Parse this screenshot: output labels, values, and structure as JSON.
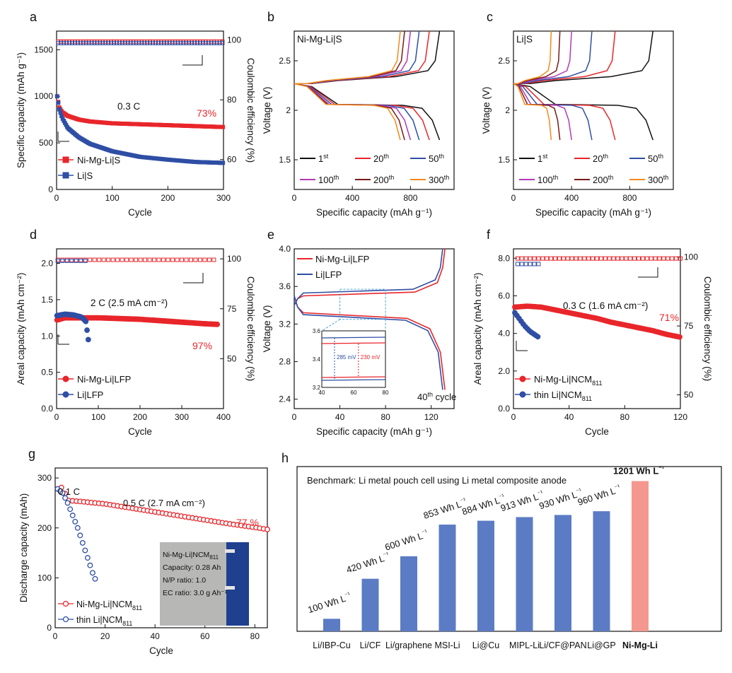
{
  "chart_data": [
    {
      "panel": "a",
      "type": "scatter",
      "xlabel": "Cycle",
      "ylabel": "Specific capacity (mAh g⁻¹)",
      "y2label": "Coulombic efficiency (%)",
      "xlim": [
        0,
        300
      ],
      "ylim": [
        0,
        1700
      ],
      "y2lim": [
        50,
        103
      ],
      "xticks": [
        0,
        100,
        200,
        300
      ],
      "yticks": [
        0,
        500,
        1000,
        1500
      ],
      "y2ticks": [
        60,
        80,
        100
      ],
      "series": [
        {
          "name": "Ni-Mg-Li|S",
          "color": "#e8262b",
          "marker": "square",
          "x": [
            1,
            5,
            10,
            20,
            40,
            60,
            100,
            150,
            200,
            250,
            300
          ],
          "y": [
            1000,
            880,
            830,
            790,
            750,
            730,
            710,
            700,
            690,
            680,
            670
          ],
          "ce": 99.5
        },
        {
          "name": "Li|S",
          "color": "#2f4ea5",
          "marker": "square",
          "x": [
            1,
            5,
            10,
            20,
            40,
            60,
            100,
            150,
            200,
            250,
            300
          ],
          "y": [
            1000,
            860,
            770,
            660,
            560,
            490,
            410,
            350,
            320,
            295,
            285
          ],
          "ce": 99.0
        }
      ],
      "annotations": [
        "0.3 C",
        "73%"
      ]
    },
    {
      "panel": "b",
      "type": "line",
      "xlabel": "Specific capacity (mAh g⁻¹)",
      "ylabel": "Voltage (V)",
      "title": "Ni-Mg-Li|S",
      "xlim": [
        0,
        1100
      ],
      "ylim": [
        1.2,
        2.8
      ],
      "xticks": [
        0,
        400,
        800
      ],
      "yticks": [
        1.5,
        2.0,
        2.5
      ],
      "curves": [
        {
          "label": "1st",
          "color": "#111111",
          "cap": 1000
        },
        {
          "label": "20th",
          "color": "#e8262b",
          "cap": 930
        },
        {
          "label": "50th",
          "color": "#2f4ea5",
          "cap": 860
        },
        {
          "label": "100th",
          "color": "#b23ab5",
          "cap": 800
        },
        {
          "label": "200th",
          "color": "#7a1a1a",
          "cap": 760
        },
        {
          "label": "300th",
          "color": "#f28a1c",
          "cap": 730
        }
      ]
    },
    {
      "panel": "c",
      "type": "line",
      "xlabel": "Specific capacity (mAh g⁻¹)",
      "ylabel": "Voltage (V)",
      "title": "Li|S",
      "xlim": [
        0,
        1100
      ],
      "ylim": [
        1.2,
        2.8
      ],
      "xticks": [
        0,
        400,
        800
      ],
      "yticks": [
        1.5,
        2.0,
        2.5
      ],
      "curves": [
        {
          "label": "1st",
          "color": "#111111",
          "cap": 960
        },
        {
          "label": "20th",
          "color": "#e8262b",
          "cap": 700
        },
        {
          "label": "50th",
          "color": "#2f4ea5",
          "cap": 540
        },
        {
          "label": "100th",
          "color": "#b23ab5",
          "cap": 400
        },
        {
          "label": "200th",
          "color": "#7a1a1a",
          "cap": 320
        },
        {
          "label": "300th",
          "color": "#f28a1c",
          "cap": 260
        }
      ]
    },
    {
      "panel": "d",
      "type": "scatter",
      "xlabel": "Cycle",
      "ylabel": "Areal capacity (mAh cm⁻²)",
      "y2label": "Coulombic efficiency (%)",
      "xlim": [
        0,
        400
      ],
      "ylim": [
        0,
        2.2
      ],
      "y2lim": [
        25,
        105
      ],
      "xticks": [
        0,
        100,
        200,
        300,
        400
      ],
      "yticks": [
        0.0,
        0.5,
        1.0,
        1.5,
        2.0
      ],
      "y2ticks": [
        50,
        75,
        100
      ],
      "series": [
        {
          "name": "Ni-Mg-Li|LFP",
          "color": "#e8262b",
          "marker": "circle",
          "x": [
            1,
            20,
            50,
            100,
            150,
            200,
            250,
            300,
            350,
            385
          ],
          "y": [
            1.22,
            1.25,
            1.25,
            1.25,
            1.24,
            1.23,
            1.21,
            1.19,
            1.17,
            1.16
          ],
          "ce": 99.5
        },
        {
          "name": "Li|LFP",
          "color": "#2f4ea5",
          "marker": "circle",
          "x": [
            1,
            20,
            40,
            60,
            70,
            75,
            78
          ],
          "y": [
            1.28,
            1.3,
            1.29,
            1.26,
            1.2,
            1.0,
            0.85
          ],
          "ce": 99.0
        }
      ],
      "annotations": [
        "2 C (2.5 mA cm⁻²)",
        "97%"
      ]
    },
    {
      "panel": "e",
      "type": "line",
      "xlabel": "Specific capacity (mAh g⁻¹)",
      "ylabel": "Voltage (V)",
      "xlim": [
        0,
        140
      ],
      "ylim": [
        2.3,
        4.0
      ],
      "xticks": [
        0,
        40,
        80,
        120
      ],
      "yticks": [
        2.4,
        2.8,
        3.2,
        3.6,
        4.0
      ],
      "series": [
        {
          "name": "Ni-Mg-Li|LFP",
          "color": "#e8262b",
          "cap": 132,
          "charge_plateau": 3.52,
          "discharge_plateau": 3.3
        },
        {
          "name": "Li|LFP",
          "color": "#2f4ea5",
          "cap": 130,
          "charge_plateau": 3.55,
          "discharge_plateau": 3.28
        }
      ],
      "inset": {
        "xlim": [
          40,
          80
        ],
        "ylim": [
          3.2,
          3.6
        ],
        "xticks": [
          40,
          60,
          80
        ],
        "yticks": [
          3.2,
          3.4,
          3.6
        ],
        "labels": [
          "285 mV",
          "230 mV"
        ]
      },
      "annotations": [
        "40th cycle"
      ]
    },
    {
      "panel": "f",
      "type": "scatter",
      "xlabel": "Cycle",
      "ylabel": "Areal capacity (mAh cm⁻²)",
      "y2label": "Coulombic efficiency (%)",
      "xlim": [
        0,
        120
      ],
      "ylim": [
        0,
        8.5
      ],
      "y2lim": [
        45,
        103
      ],
      "xticks": [
        0,
        40,
        80,
        120
      ],
      "yticks": [
        0.0,
        2.0,
        4.0,
        6.0,
        8.0
      ],
      "y2ticks": [
        50,
        75,
        100
      ],
      "series": [
        {
          "name": "Ni-Mg-Li|NCM811",
          "color": "#e8262b",
          "marker": "circle",
          "x": [
            1,
            10,
            20,
            30,
            40,
            50,
            60,
            70,
            80,
            90,
            100,
            110,
            120
          ],
          "y": [
            5.4,
            5.45,
            5.4,
            5.25,
            5.1,
            4.95,
            4.8,
            4.6,
            4.45,
            4.3,
            4.15,
            3.95,
            3.8
          ],
          "ce": 99.5
        },
        {
          "name": "thin Li|NCM811",
          "color": "#2f4ea5",
          "marker": "circle",
          "x": [
            1,
            4,
            8,
            12,
            16,
            18
          ],
          "y": [
            5.1,
            4.8,
            4.4,
            4.1,
            3.9,
            3.8
          ],
          "ce": 97.5
        }
      ],
      "annotations": [
        "0.3 C (1.6 mA cm⁻²)",
        "71%"
      ]
    },
    {
      "panel": "g",
      "type": "scatter",
      "xlabel": "Cycle",
      "ylabel": "Discharge capacity (mAh)",
      "xlim": [
        0,
        85
      ],
      "ylim": [
        0,
        320
      ],
      "xticks": [
        0,
        20,
        40,
        60,
        80
      ],
      "yticks": [
        0,
        100,
        200,
        300
      ],
      "series": [
        {
          "name": "Ni-Mg-Li|NCM811",
          "color": "#e8262b",
          "marker": "circle",
          "x": [
            1,
            3,
            5,
            10,
            20,
            30,
            40,
            50,
            60,
            70,
            80,
            85
          ],
          "y": [
            278,
            282,
            255,
            253,
            248,
            240,
            232,
            224,
            216,
            208,
            201,
            197
          ]
        },
        {
          "name": "thin Li|NCM811",
          "color": "#2f4ea5",
          "marker": "circle",
          "x": [
            1,
            3,
            5,
            7,
            9,
            11,
            13,
            15,
            16
          ],
          "y": [
            278,
            270,
            250,
            225,
            200,
            170,
            140,
            110,
            98
          ]
        }
      ],
      "annotations": [
        "0.1 C",
        "0.5 C (2.7 mA cm⁻²)",
        "77 %"
      ],
      "photo_labels": [
        "Ni-Mg-Li|NCM811",
        "Capacity: 0.28 Ah",
        "N/P ratio: 1.0",
        "EC ratio: 3.0 g Ah⁻¹"
      ]
    },
    {
      "panel": "h",
      "type": "bar",
      "title": "Benchmark: Li metal pouch cell using Li metal composite anode",
      "categories": [
        "Li/IBP-Cu",
        "Li/CF",
        "Li/graphene",
        "MSI-Li",
        "Li@Cu",
        "MIPL-Li",
        "Li/CF@PAN",
        "Li@GP",
        "Ni-Mg-Li"
      ],
      "values": [
        100,
        420,
        600,
        853,
        884,
        913,
        930,
        960,
        1201
      ],
      "labels": [
        "100 Wh L⁻¹",
        "420 Wh L⁻¹",
        "600 Wh L⁻¹",
        "853 Wh L⁻¹",
        "884 Wh L⁻¹",
        "913 Wh L⁻¹",
        "930 Wh L⁻¹",
        "960 Wh L⁻¹",
        "1201 Wh L⁻¹"
      ],
      "colors": [
        "#5b7cc4",
        "#5b7cc4",
        "#5b7cc4",
        "#5b7cc4",
        "#5b7cc4",
        "#5b7cc4",
        "#5b7cc4",
        "#5b7cc4",
        "#f4978e"
      ]
    }
  ]
}
